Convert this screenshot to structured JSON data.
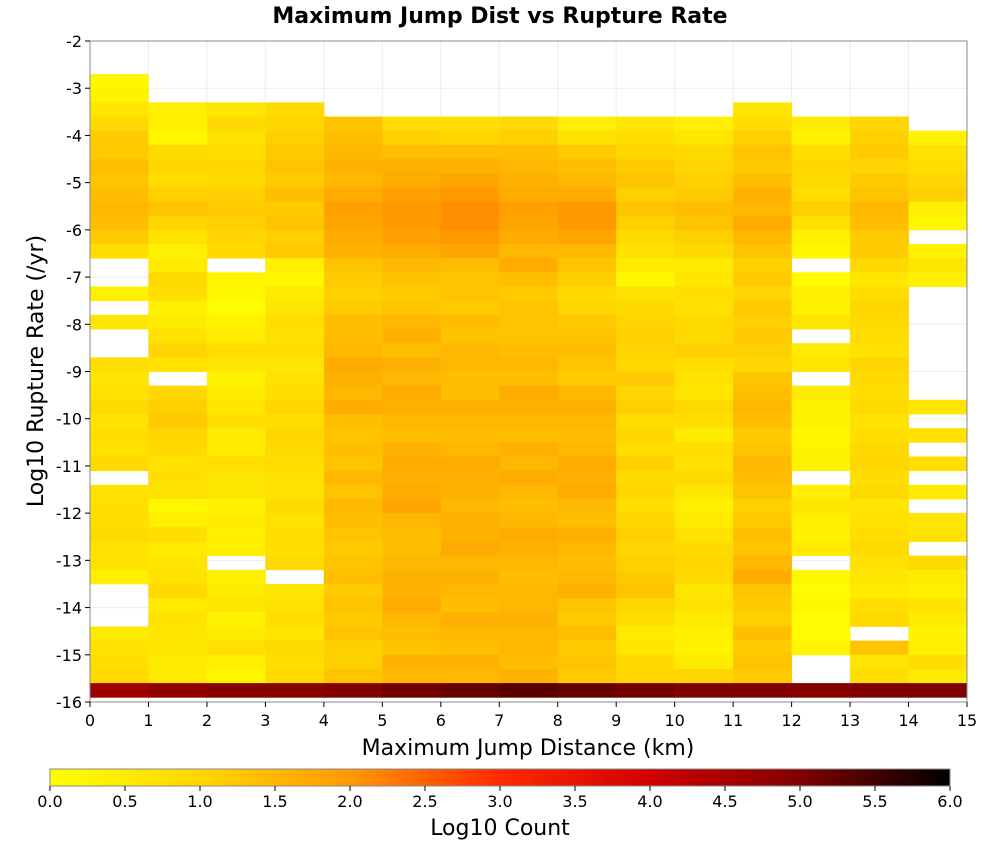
{
  "chart_data": {
    "type": "heatmap",
    "title": "Maximum Jump Dist vs Rupture Rate",
    "xlabel": "Maximum Jump Distance (km)",
    "ylabel": "Log10 Rupture Rate (/yr)",
    "colorbar_label": "Log10 Count",
    "x_ticks": [
      "0",
      "1",
      "2",
      "3",
      "4",
      "5",
      "6",
      "7",
      "8",
      "9",
      "10",
      "11",
      "12",
      "13",
      "14",
      "15"
    ],
    "y_ticks": [
      "-2",
      "-3",
      "-4",
      "-5",
      "-6",
      "-7",
      "-8",
      "-9",
      "-10",
      "-11",
      "-12",
      "-13",
      "-14",
      "-15",
      "-16"
    ],
    "colorbar_ticks": [
      "0.0",
      "0.5",
      "1.0",
      "1.5",
      "2.0",
      "2.5",
      "3.0",
      "3.5",
      "4.0",
      "4.5",
      "5.0",
      "5.5",
      "6.0"
    ],
    "xlim": [
      0,
      15
    ],
    "ylim": [
      -16,
      -2
    ],
    "clim": [
      0,
      6
    ],
    "bin_width_x": 1,
    "bin_height_y": 0.3,
    "x_bins": [
      0.5,
      1.5,
      2.5,
      3.5,
      4.5,
      5.5,
      6.5,
      7.5,
      8.5,
      9.5,
      10.5,
      11.5,
      12.5,
      13.5,
      14.5
    ],
    "y_bins_from_top": [
      -2.85,
      -3.15,
      -3.45,
      -3.75,
      -4.05,
      -4.35,
      -4.65,
      -4.95,
      -5.25,
      -5.55,
      -5.85,
      -6.15,
      -6.45,
      -6.75,
      -7.05,
      -7.35,
      -7.65,
      -7.95,
      -8.25,
      -8.55,
      -8.85,
      -9.15,
      -9.45,
      -9.75,
      -10.05,
      -10.35,
      -10.65,
      -10.95,
      -11.25,
      -11.55,
      -11.85,
      -12.15,
      -12.45,
      -12.75,
      -13.05,
      -13.35,
      -13.65,
      -13.95,
      -14.25,
      -14.55,
      -14.85,
      -15.15,
      -15.45,
      -15.75
    ],
    "counts_note": "z = Log10 Count per cell; null = empty bin",
    "z_by_column": [
      [
        0.2,
        0.3,
        0.6,
        0.9,
        1.2,
        1.2,
        1.4,
        1.3,
        1.4,
        1.5,
        1.4,
        1.2,
        0.8,
        null,
        null,
        0.4,
        null,
        0.6,
        null,
        null,
        0.8,
        0.6,
        0.7,
        0.9,
        0.7,
        0.8,
        0.7,
        0.9,
        null,
        0.7,
        0.8,
        0.8,
        0.9,
        0.7,
        0.7,
        0.4,
        null,
        null,
        null,
        0.5,
        0.7,
        0.8,
        0.9,
        4.6
      ],
      [
        null,
        null,
        0.4,
        0.4,
        0.2,
        0.9,
        1.0,
        0.8,
        1.1,
        1.3,
        1.0,
        0.7,
        0.4,
        0.5,
        0.9,
        0.8,
        0.4,
        0.5,
        0.7,
        1.0,
        0.7,
        null,
        1.0,
        1.1,
        1.2,
        1.0,
        0.9,
        0.7,
        0.8,
        0.7,
        0.2,
        0.4,
        0.8,
        0.5,
        0.6,
        0.7,
        0.9,
        0.5,
        0.7,
        0.6,
        0.6,
        0.5,
        0.5,
        4.8
      ],
      [
        null,
        null,
        0.6,
        0.9,
        0.7,
        0.8,
        1.0,
        0.9,
        1.1,
        1.2,
        1.1,
        1.0,
        0.9,
        null,
        0.3,
        0.2,
        0.1,
        0.3,
        0.5,
        0.8,
        0.6,
        0.3,
        0.5,
        0.6,
        0.8,
        0.5,
        0.5,
        0.8,
        0.6,
        0.6,
        0.3,
        0.5,
        0.4,
        0.4,
        null,
        0.4,
        0.5,
        0.6,
        0.3,
        0.5,
        0.8,
        0.4,
        0.2,
        4.9
      ],
      [
        null,
        null,
        0.9,
        1.0,
        1.1,
        1.2,
        1.3,
        1.2,
        1.4,
        1.2,
        1.3,
        1.1,
        1.2,
        0.4,
        0.2,
        0.5,
        0.6,
        0.8,
        0.7,
        0.8,
        0.6,
        0.7,
        0.8,
        1.0,
        0.8,
        1.0,
        0.9,
        0.8,
        0.7,
        0.7,
        0.9,
        0.7,
        0.8,
        0.8,
        0.9,
        null,
        0.6,
        0.7,
        0.8,
        0.6,
        0.9,
        0.8,
        0.9,
        4.9
      ],
      [
        null,
        null,
        null,
        1.3,
        1.4,
        1.5,
        1.6,
        1.5,
        1.7,
        1.9,
        1.8,
        1.7,
        1.6,
        1.3,
        1.2,
        1.1,
        1.2,
        1.4,
        1.4,
        1.5,
        1.7,
        1.6,
        1.5,
        1.7,
        1.4,
        1.3,
        1.4,
        1.3,
        1.5,
        1.3,
        1.5,
        1.4,
        1.3,
        1.2,
        1.3,
        1.4,
        1.2,
        1.3,
        1.2,
        1.3,
        1.1,
        1.1,
        1.3,
        5.0
      ],
      [
        null,
        null,
        null,
        0.8,
        1.1,
        1.4,
        1.6,
        1.7,
        1.9,
        2.0,
        2.0,
        1.9,
        1.7,
        1.5,
        1.3,
        1.2,
        1.3,
        1.5,
        1.6,
        1.4,
        1.6,
        1.5,
        1.7,
        1.6,
        1.5,
        1.4,
        1.6,
        1.7,
        1.6,
        1.7,
        1.8,
        1.5,
        1.4,
        1.4,
        1.5,
        1.6,
        1.6,
        1.7,
        1.5,
        1.4,
        1.3,
        1.6,
        1.5,
        5.1
      ],
      [
        null,
        null,
        null,
        0.8,
        1.0,
        1.4,
        1.6,
        1.8,
        2.0,
        2.1,
        2.1,
        2.0,
        1.8,
        1.4,
        1.3,
        1.3,
        1.2,
        1.4,
        1.3,
        1.5,
        1.5,
        1.4,
        1.4,
        1.6,
        1.5,
        1.4,
        1.5,
        1.7,
        1.6,
        1.6,
        1.5,
        1.6,
        1.6,
        1.7,
        1.5,
        1.6,
        1.5,
        1.4,
        1.6,
        1.5,
        1.4,
        1.6,
        1.5,
        5.2
      ],
      [
        null,
        null,
        null,
        0.9,
        1.1,
        1.4,
        1.5,
        1.6,
        1.7,
        1.9,
        1.8,
        1.7,
        1.5,
        1.7,
        1.4,
        1.2,
        1.3,
        1.3,
        1.3,
        1.4,
        1.5,
        1.4,
        1.7,
        1.6,
        1.5,
        1.4,
        1.6,
        1.5,
        1.7,
        1.5,
        1.4,
        1.5,
        1.7,
        1.6,
        1.5,
        1.4,
        1.5,
        1.5,
        1.6,
        1.5,
        1.5,
        1.4,
        1.6,
        5.3
      ],
      [
        null,
        null,
        null,
        0.4,
        0.7,
        1.2,
        1.4,
        1.5,
        1.7,
        2.0,
        2.0,
        1.8,
        1.5,
        1.3,
        1.1,
        0.9,
        1.0,
        1.2,
        1.3,
        1.4,
        1.3,
        1.2,
        1.5,
        1.6,
        1.5,
        1.4,
        1.5,
        1.7,
        1.6,
        1.7,
        1.5,
        1.4,
        1.6,
        1.5,
        1.4,
        1.5,
        1.6,
        1.3,
        1.2,
        1.4,
        1.2,
        1.3,
        1.2,
        5.2
      ],
      [
        null,
        null,
        null,
        0.6,
        0.8,
        1.0,
        1.2,
        1.3,
        1.1,
        1.3,
        1.1,
        0.9,
        0.7,
        0.5,
        0.2,
        0.7,
        0.9,
        1.0,
        1.1,
        1.0,
        0.9,
        1.2,
        1.0,
        1.1,
        0.8,
        1.0,
        0.8,
        1.1,
        0.9,
        1.0,
        0.8,
        1.0,
        1.1,
        1.0,
        1.1,
        1.2,
        1.3,
        1.0,
        0.8,
        0.5,
        0.6,
        0.9,
        1.0,
        5.1
      ],
      [
        null,
        null,
        null,
        0.4,
        0.6,
        0.9,
        1.0,
        1.1,
        1.2,
        1.4,
        1.3,
        1.1,
        0.9,
        0.5,
        0.6,
        0.8,
        0.7,
        0.9,
        0.9,
        1.1,
        0.8,
        0.7,
        0.6,
        0.9,
        0.8,
        0.5,
        0.8,
        0.7,
        0.9,
        0.6,
        0.4,
        0.5,
        0.7,
        0.9,
        1.0,
        0.9,
        0.6,
        0.7,
        0.5,
        0.4,
        0.3,
        0.5,
        1.0,
        5.0
      ],
      [
        null,
        null,
        0.6,
        0.8,
        1.1,
        1.3,
        1.2,
        1.4,
        1.6,
        1.5,
        1.7,
        1.5,
        1.3,
        1.1,
        1.2,
        1.0,
        1.2,
        1.1,
        1.2,
        1.1,
        1.0,
        1.3,
        1.4,
        1.5,
        1.4,
        1.2,
        1.3,
        1.5,
        1.4,
        1.3,
        1.1,
        1.2,
        1.4,
        1.3,
        1.5,
        1.7,
        1.3,
        1.2,
        1.1,
        1.4,
        1.2,
        1.3,
        1.2,
        5.0
      ],
      [
        null,
        null,
        null,
        0.5,
        0.3,
        0.8,
        1.0,
        0.9,
        0.8,
        1.1,
        0.7,
        0.4,
        0.2,
        null,
        0.1,
        0.4,
        0.3,
        0.6,
        null,
        0.5,
        0.6,
        null,
        0.5,
        0.3,
        0.3,
        0.2,
        0.3,
        0.3,
        null,
        0.4,
        0.6,
        0.4,
        0.3,
        0.5,
        null,
        0.2,
        0.1,
        0.2,
        0.1,
        0.1,
        0.3,
        null,
        null,
        4.9
      ],
      [
        null,
        null,
        null,
        1.0,
        1.1,
        1.2,
        1.0,
        1.2,
        1.3,
        1.5,
        1.4,
        1.2,
        1.2,
        0.9,
        0.6,
        0.8,
        1.0,
        0.9,
        0.8,
        0.7,
        1.0,
        0.9,
        0.8,
        0.9,
        0.7,
        0.8,
        0.9,
        1.0,
        0.8,
        0.9,
        0.6,
        0.7,
        0.8,
        0.9,
        0.7,
        0.6,
        0.5,
        0.8,
        0.9,
        null,
        1.3,
        0.6,
        0.8,
        5.0
      ],
      [
        null,
        null,
        null,
        null,
        0.3,
        0.7,
        0.8,
        1.0,
        1.1,
        0.4,
        0.2,
        null,
        0.3,
        0.6,
        0.4,
        null,
        null,
        null,
        null,
        null,
        null,
        null,
        null,
        0.6,
        null,
        0.7,
        null,
        0.8,
        null,
        0.5,
        null,
        0.6,
        0.7,
        null,
        0.9,
        0.5,
        0.4,
        0.7,
        0.5,
        0.3,
        0.4,
        0.8,
        0.5,
        5.0
      ]
    ]
  }
}
